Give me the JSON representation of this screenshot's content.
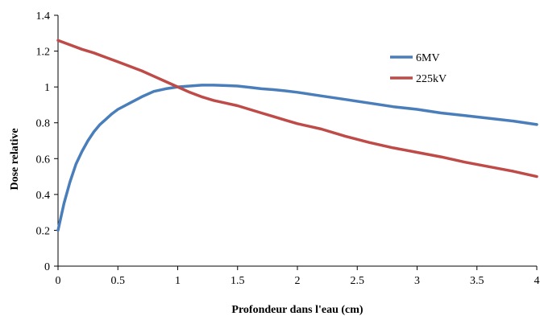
{
  "chart_data": {
    "type": "line",
    "title": "",
    "xlabel": "Profondeur dans l'eau (cm)",
    "ylabel": "Dose relative",
    "xlim": [
      0,
      4
    ],
    "ylim": [
      0,
      1.4
    ],
    "xticks": [
      0,
      0.5,
      1,
      1.5,
      2,
      2.5,
      3,
      3.5,
      4
    ],
    "xtick_labels": [
      "0",
      "0.5",
      "1",
      "1.5",
      "2",
      "2.5",
      "3",
      "3.5",
      "4"
    ],
    "yticks": [
      0,
      0.2,
      0.4,
      0.6,
      0.8,
      1,
      1.2,
      1.4
    ],
    "ytick_labels": [
      "0",
      "0.2",
      "0.4",
      "0.6",
      "0.8",
      "1",
      "1.2",
      "1.4"
    ],
    "grid": false,
    "legend_position": "right",
    "series": [
      {
        "name": "6MV",
        "color": "#4a7ebb",
        "x": [
          0,
          0.05,
          0.1,
          0.15,
          0.2,
          0.25,
          0.3,
          0.35,
          0.4,
          0.45,
          0.5,
          0.6,
          0.7,
          0.8,
          0.9,
          1.0,
          1.1,
          1.2,
          1.3,
          1.4,
          1.5,
          1.6,
          1.7,
          1.8,
          1.9,
          2.0,
          2.2,
          2.4,
          2.6,
          2.8,
          3.0,
          3.2,
          3.4,
          3.6,
          3.8,
          4.0
        ],
        "y": [
          0.2,
          0.35,
          0.47,
          0.57,
          0.64,
          0.7,
          0.75,
          0.79,
          0.82,
          0.85,
          0.875,
          0.91,
          0.945,
          0.975,
          0.99,
          1.0,
          1.005,
          1.01,
          1.01,
          1.008,
          1.005,
          0.998,
          0.99,
          0.985,
          0.978,
          0.97,
          0.95,
          0.93,
          0.91,
          0.89,
          0.875,
          0.855,
          0.84,
          0.825,
          0.81,
          0.79
        ]
      },
      {
        "name": "225kV",
        "color": "#be4b48",
        "x": [
          0,
          0.1,
          0.2,
          0.3,
          0.4,
          0.5,
          0.6,
          0.7,
          0.8,
          0.9,
          1.0,
          1.1,
          1.2,
          1.3,
          1.4,
          1.5,
          1.6,
          1.7,
          1.8,
          1.9,
          2.0,
          2.2,
          2.4,
          2.6,
          2.8,
          3.0,
          3.2,
          3.4,
          3.6,
          3.8,
          4.0
        ],
        "y": [
          1.26,
          1.235,
          1.21,
          1.19,
          1.165,
          1.14,
          1.115,
          1.09,
          1.06,
          1.03,
          1.0,
          0.97,
          0.945,
          0.925,
          0.91,
          0.895,
          0.875,
          0.855,
          0.835,
          0.815,
          0.795,
          0.765,
          0.725,
          0.69,
          0.66,
          0.635,
          0.61,
          0.58,
          0.555,
          0.53,
          0.5
        ]
      }
    ]
  }
}
